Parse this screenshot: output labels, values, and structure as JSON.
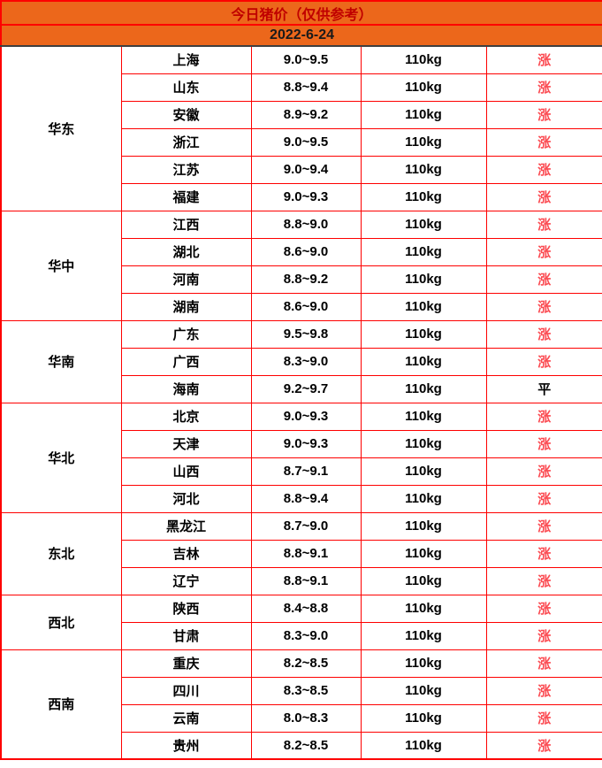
{
  "header": {
    "title": "今日猪价（仅供参考）",
    "date": "2022-6-24"
  },
  "status_legend": {
    "up": "涨",
    "flat": "平"
  },
  "colors": {
    "header_bg": "#ec671b",
    "title_text": "#c00000",
    "date_text": "#1a1a1a",
    "grid_border": "#fe0000",
    "header_divider": "#3f3f3f",
    "up_text": "#fb4a51",
    "flat_text": "#000000",
    "body_text": "#000000"
  },
  "table": {
    "groups": [
      {
        "region": "华东",
        "rows": [
          {
            "province": "上海",
            "price": "9.0~9.5",
            "weight": "110kg",
            "status": "涨"
          },
          {
            "province": "山东",
            "price": "8.8~9.4",
            "weight": "110kg",
            "status": "涨"
          },
          {
            "province": "安徽",
            "price": "8.9~9.2",
            "weight": "110kg",
            "status": "涨"
          },
          {
            "province": "浙江",
            "price": "9.0~9.5",
            "weight": "110kg",
            "status": "涨"
          },
          {
            "province": "江苏",
            "price": "9.0~9.4",
            "weight": "110kg",
            "status": "涨"
          },
          {
            "province": "福建",
            "price": "9.0~9.3",
            "weight": "110kg",
            "status": "涨"
          }
        ]
      },
      {
        "region": "华中",
        "rows": [
          {
            "province": "江西",
            "price": "8.8~9.0",
            "weight": "110kg",
            "status": "涨"
          },
          {
            "province": "湖北",
            "price": "8.6~9.0",
            "weight": "110kg",
            "status": "涨"
          },
          {
            "province": "河南",
            "price": "8.8~9.2",
            "weight": "110kg",
            "status": "涨"
          },
          {
            "province": "湖南",
            "price": "8.6~9.0",
            "weight": "110kg",
            "status": "涨"
          }
        ]
      },
      {
        "region": "华南",
        "rows": [
          {
            "province": "广东",
            "price": "9.5~9.8",
            "weight": "110kg",
            "status": "涨"
          },
          {
            "province": "广西",
            "price": "8.3~9.0",
            "weight": "110kg",
            "status": "涨"
          },
          {
            "province": "海南",
            "price": "9.2~9.7",
            "weight": "110kg",
            "status": "平"
          }
        ]
      },
      {
        "region": "华北",
        "rows": [
          {
            "province": "北京",
            "price": "9.0~9.3",
            "weight": "110kg",
            "status": "涨"
          },
          {
            "province": "天津",
            "price": "9.0~9.3",
            "weight": "110kg",
            "status": "涨"
          },
          {
            "province": "山西",
            "price": "8.7~9.1",
            "weight": "110kg",
            "status": "涨"
          },
          {
            "province": "河北",
            "price": "8.8~9.4",
            "weight": "110kg",
            "status": "涨"
          }
        ]
      },
      {
        "region": "东北",
        "rows": [
          {
            "province": "黑龙江",
            "price": "8.7~9.0",
            "weight": "110kg",
            "status": "涨"
          },
          {
            "province": "吉林",
            "price": "8.8~9.1",
            "weight": "110kg",
            "status": "涨"
          },
          {
            "province": "辽宁",
            "price": "8.8~9.1",
            "weight": "110kg",
            "status": "涨"
          }
        ]
      },
      {
        "region": "西北",
        "rows": [
          {
            "province": "陕西",
            "price": "8.4~8.8",
            "weight": "110kg",
            "status": "涨"
          },
          {
            "province": "甘肃",
            "price": "8.3~9.0",
            "weight": "110kg",
            "status": "涨"
          }
        ]
      },
      {
        "region": "西南",
        "rows": [
          {
            "province": "重庆",
            "price": "8.2~8.5",
            "weight": "110kg",
            "status": "涨"
          },
          {
            "province": "四川",
            "price": "8.3~8.5",
            "weight": "110kg",
            "status": "涨"
          },
          {
            "province": "云南",
            "price": "8.0~8.3",
            "weight": "110kg",
            "status": "涨"
          },
          {
            "province": "贵州",
            "price": "8.2~8.5",
            "weight": "110kg",
            "status": "涨"
          }
        ]
      }
    ]
  },
  "chart_data": {
    "type": "table",
    "title": "今日猪价（仅供参考）",
    "subtitle": "2022-6-24",
    "columns": [
      "region",
      "province",
      "price_range",
      "weight",
      "trend"
    ],
    "rows": [
      [
        "华东",
        "上海",
        "9.0~9.5",
        "110kg",
        "涨"
      ],
      [
        "华东",
        "山东",
        "8.8~9.4",
        "110kg",
        "涨"
      ],
      [
        "华东",
        "安徽",
        "8.9~9.2",
        "110kg",
        "涨"
      ],
      [
        "华东",
        "浙江",
        "9.0~9.5",
        "110kg",
        "涨"
      ],
      [
        "华东",
        "江苏",
        "9.0~9.4",
        "110kg",
        "涨"
      ],
      [
        "华东",
        "福建",
        "9.0~9.3",
        "110kg",
        "涨"
      ],
      [
        "华中",
        "江西",
        "8.8~9.0",
        "110kg",
        "涨"
      ],
      [
        "华中",
        "湖北",
        "8.6~9.0",
        "110kg",
        "涨"
      ],
      [
        "华中",
        "河南",
        "8.8~9.2",
        "110kg",
        "涨"
      ],
      [
        "华中",
        "湖南",
        "8.6~9.0",
        "110kg",
        "涨"
      ],
      [
        "华南",
        "广东",
        "9.5~9.8",
        "110kg",
        "涨"
      ],
      [
        "华南",
        "广西",
        "8.3~9.0",
        "110kg",
        "涨"
      ],
      [
        "华南",
        "海南",
        "9.2~9.7",
        "110kg",
        "平"
      ],
      [
        "华北",
        "北京",
        "9.0~9.3",
        "110kg",
        "涨"
      ],
      [
        "华北",
        "天津",
        "9.0~9.3",
        "110kg",
        "涨"
      ],
      [
        "华北",
        "山西",
        "8.7~9.1",
        "110kg",
        "涨"
      ],
      [
        "华北",
        "河北",
        "8.8~9.4",
        "110kg",
        "涨"
      ],
      [
        "东北",
        "黑龙江",
        "8.7~9.0",
        "110kg",
        "涨"
      ],
      [
        "东北",
        "吉林",
        "8.8~9.1",
        "110kg",
        "涨"
      ],
      [
        "东北",
        "辽宁",
        "8.8~9.1",
        "110kg",
        "涨"
      ],
      [
        "西北",
        "陕西",
        "8.4~8.8",
        "110kg",
        "涨"
      ],
      [
        "西北",
        "甘肃",
        "8.3~9.0",
        "110kg",
        "涨"
      ],
      [
        "西南",
        "重庆",
        "8.2~8.5",
        "110kg",
        "涨"
      ],
      [
        "西南",
        "四川",
        "8.3~8.5",
        "110kg",
        "涨"
      ],
      [
        "西南",
        "云南",
        "8.0~8.3",
        "110kg",
        "涨"
      ],
      [
        "西南",
        "贵州",
        "8.2~8.5",
        "110kg",
        "涨"
      ]
    ]
  }
}
